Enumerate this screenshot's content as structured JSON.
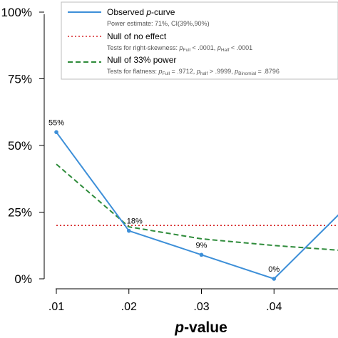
{
  "chart_data": {
    "type": "line",
    "title": "",
    "xlabel": "p-value",
    "ylabel": "",
    "x": [
      0.01,
      0.02,
      0.03,
      0.04,
      0.05
    ],
    "x_tick_labels": [
      ".01",
      ".02",
      ".03",
      ".04"
    ],
    "y_tick_labels": [
      "0%",
      "25%",
      "50%",
      "75%",
      "100%"
    ],
    "xlim": [
      0.01,
      0.05
    ],
    "ylim": [
      0,
      100
    ],
    "grid": false,
    "legend_position": "top-right",
    "series": [
      {
        "name": "Observed p-curve",
        "color": "#3d8fd8",
        "dash": "solid",
        "values": [
          55,
          18,
          9,
          0,
          27
        ],
        "point_labels": [
          "55%",
          "18%",
          "9%",
          "0%",
          ""
        ]
      },
      {
        "name": "Null of no effect",
        "color": "#d62728",
        "dash": "dotted",
        "values": [
          20,
          20,
          20,
          20,
          20
        ]
      },
      {
        "name": "Null of 33% power",
        "color": "#2e8b3a",
        "dash": "dashed",
        "values": [
          43,
          19.5,
          15,
          12.5,
          10.5
        ]
      }
    ],
    "legend": {
      "observed_title": "Observed p-curve",
      "observed_detail": "Power estimate: 71%, CI(39%,90%)",
      "null_title": "Null of no effect",
      "null_detail": "Tests for right-skewness: pFull < .0001,  pHalf < .0001",
      "power_title": "Null of 33% power",
      "power_detail": "Tests for flatness: pFull = .9712,  phalf > .9999,  pBinomial = .8796"
    }
  }
}
